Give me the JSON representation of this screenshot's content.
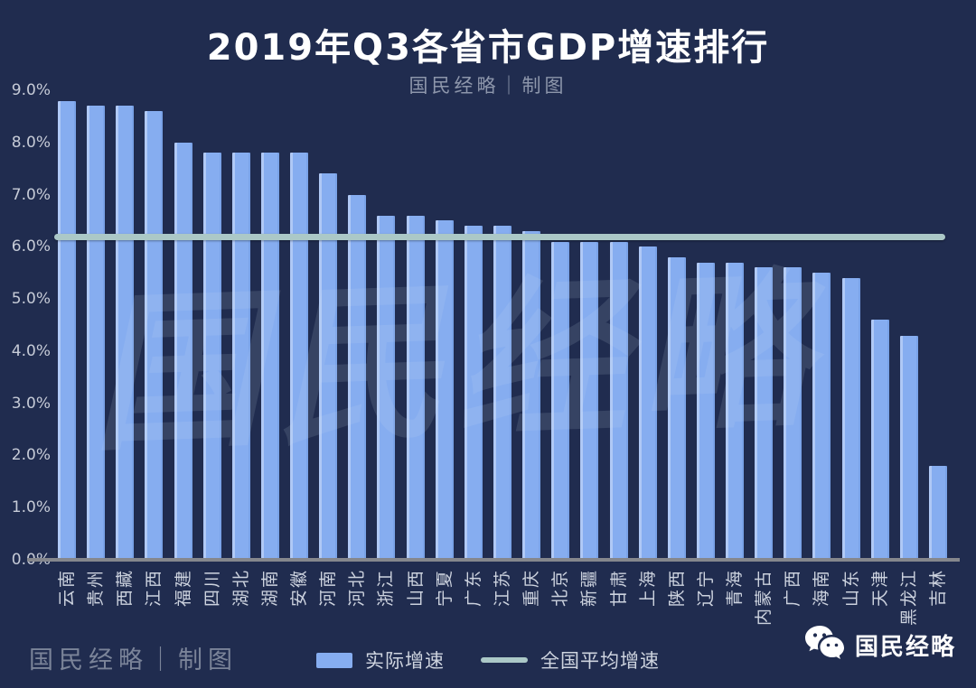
{
  "title": "2019年Q3各省市GDP增速排行",
  "subtitle": "国民经略｜制图",
  "watermark": "国民经略",
  "legend": {
    "bar_label": "实际增速",
    "line_label": "全国平均增速"
  },
  "footer": {
    "credit": "国民经略｜制图",
    "wechat_account": "国民经略"
  },
  "colors": {
    "background": "#202c4f",
    "bar": "#86adf0",
    "average_line": "#abc8c7",
    "axis": "#85878d",
    "tick_text": "#c6cbd7",
    "title_text": "#ffffff"
  },
  "chart_data": {
    "type": "bar",
    "title": "2019年Q3各省市GDP增速排行",
    "categories": [
      "云南",
      "贵州",
      "西藏",
      "江西",
      "福建",
      "四川",
      "湖北",
      "湖南",
      "安徽",
      "河南",
      "河北",
      "浙江",
      "山西",
      "宁夏",
      "广东",
      "江苏",
      "重庆",
      "北京",
      "新疆",
      "甘肃",
      "上海",
      "陕西",
      "辽宁",
      "青海",
      "内蒙古",
      "广西",
      "海南",
      "山东",
      "天津",
      "黑龙江",
      "吉林"
    ],
    "values": [
      8.8,
      8.7,
      8.7,
      8.6,
      8.0,
      7.8,
      7.8,
      7.8,
      7.8,
      7.4,
      7.0,
      6.6,
      6.6,
      6.5,
      6.4,
      6.4,
      6.3,
      6.1,
      6.1,
      6.1,
      6.0,
      5.8,
      5.7,
      5.7,
      5.6,
      5.6,
      5.5,
      5.4,
      4.6,
      4.3,
      1.8
    ],
    "unit": "%",
    "series_name": "实际增速",
    "average_line": {
      "name": "全国平均增速",
      "value": 6.2
    },
    "ylim": [
      0,
      9
    ],
    "yticks": [
      "0.0%",
      "1.0%",
      "2.0%",
      "3.0%",
      "4.0%",
      "5.0%",
      "6.0%",
      "7.0%",
      "8.0%",
      "9.0%"
    ],
    "grid": false,
    "legend_position": "bottom"
  }
}
